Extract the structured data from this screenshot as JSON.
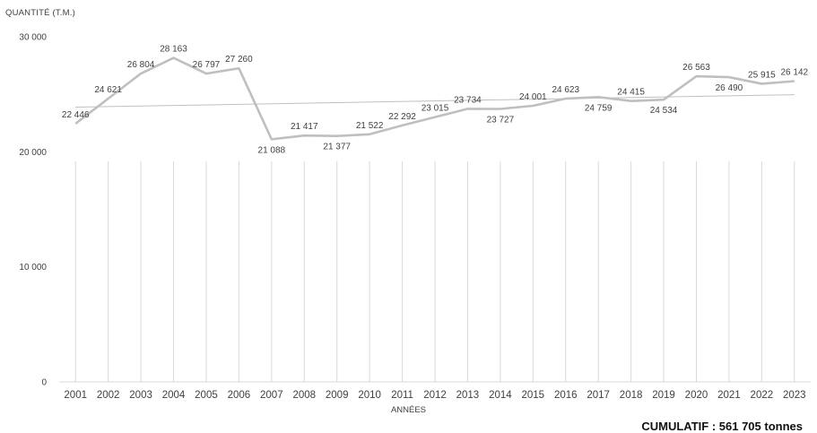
{
  "chart_data": {
    "type": "line",
    "ylabel": "QUANTITÉ (T.M.)",
    "xlabel": "ANNÉES",
    "ylim": [
      0,
      30000
    ],
    "yticks": [
      0,
      10000,
      20000,
      30000
    ],
    "ytick_labels": [
      "0",
      "10 000",
      "20 000",
      "30 000"
    ],
    "categories": [
      "2001",
      "2002",
      "2003",
      "2004",
      "2005",
      "2006",
      "2007",
      "2008",
      "2009",
      "2010",
      "2011",
      "2012",
      "2013",
      "2014",
      "2015",
      "2016",
      "2017",
      "2018",
      "2019",
      "2020",
      "2021",
      "2022",
      "2023"
    ],
    "series": [
      {
        "values": [
          22446,
          24621,
          26804,
          28163,
          26797,
          27260,
          21088,
          21417,
          21377,
          21522,
          22292,
          23015,
          23734,
          23727,
          24001,
          24623,
          24759,
          24415,
          24534,
          26563,
          26490,
          25915,
          26142
        ],
        "labels": [
          "22 446",
          "24 621",
          "26 804",
          "28 163",
          "26 797",
          "27 260",
          "21 088",
          "21 417",
          "21 377",
          "21 522",
          "22 292",
          "23 015",
          "23 734",
          "23 727",
          "24 001",
          "24 623",
          "24 759",
          "24 415",
          "24 534",
          "26 563",
          "26 490",
          "25 915",
          "26 142"
        ],
        "color": "#bfbfbf"
      }
    ],
    "trendline": {
      "type": "linear",
      "color": "#bfbfbf"
    },
    "grid": {
      "vertical": true,
      "horizontal": false,
      "color": "#d9d9d9"
    },
    "legend": "none"
  },
  "footer": {
    "cumulative": "CUMULATIF : 561 705 tonnes"
  }
}
